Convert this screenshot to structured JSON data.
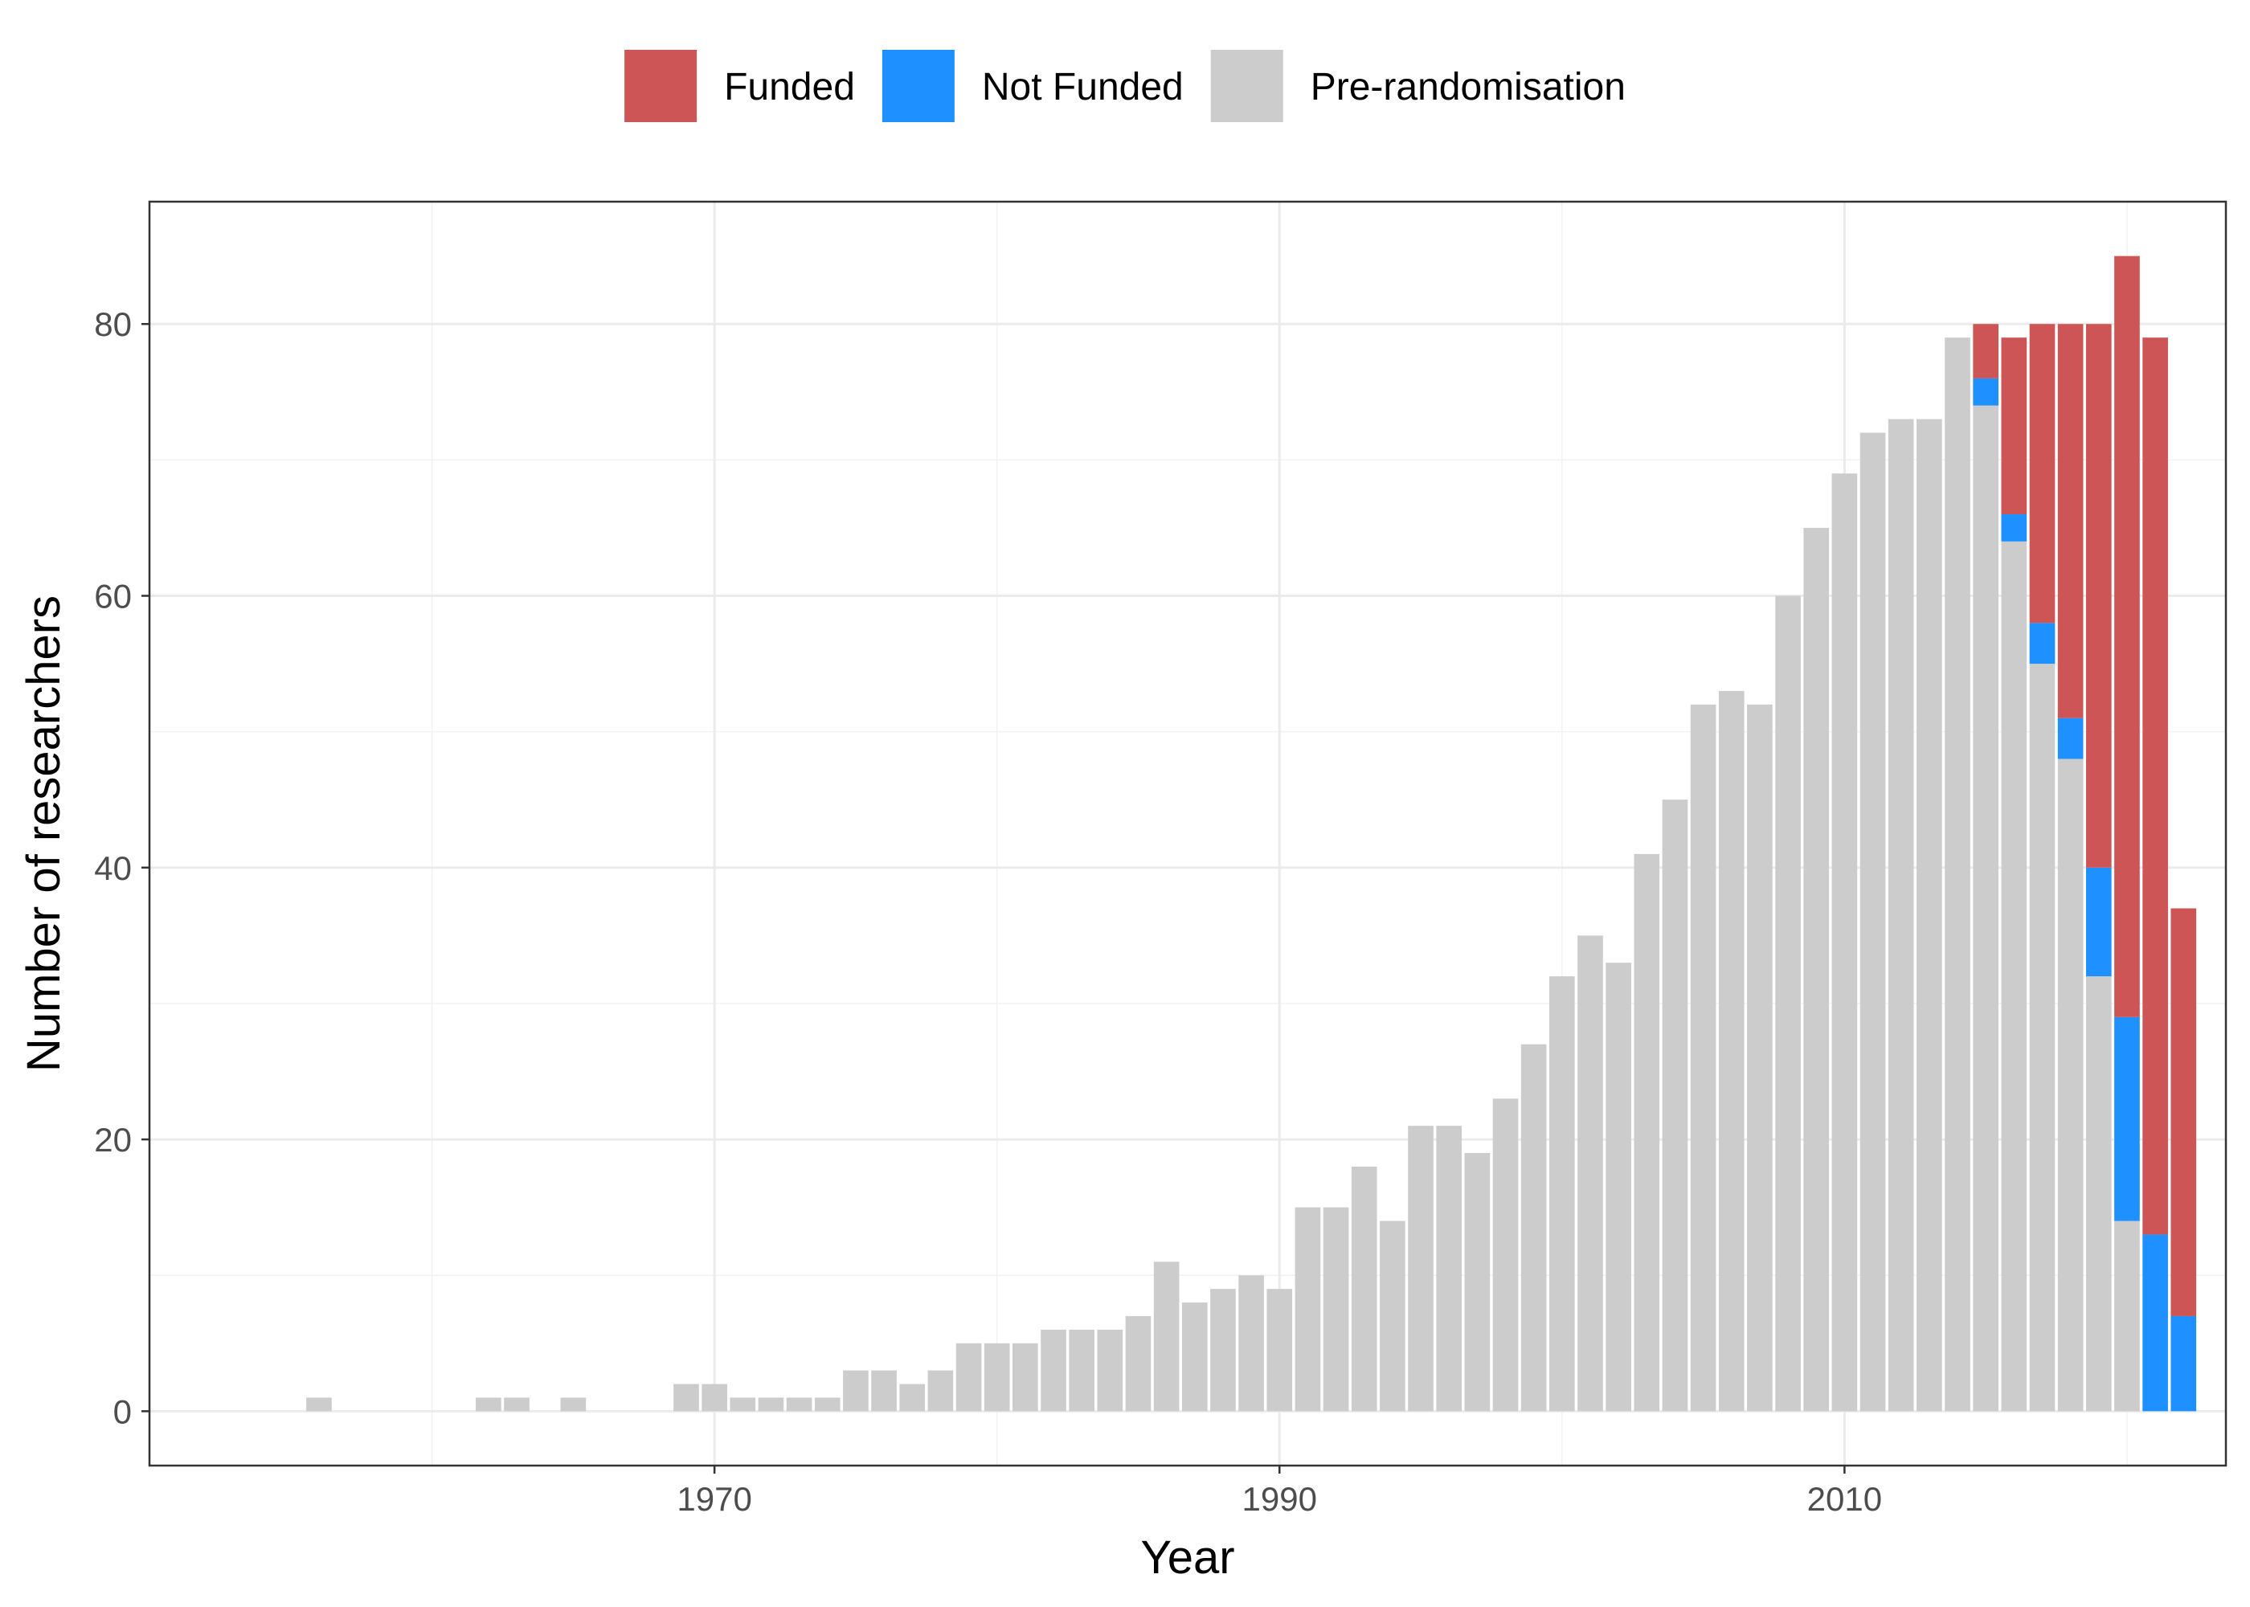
{
  "chart_data": {
    "type": "bar",
    "stacked": true,
    "title": "",
    "xlabel": "Year",
    "ylabel": "Number of researchers",
    "xlim": [
      1950,
      2023.5
    ],
    "ylim": [
      -4,
      89
    ],
    "x_ticks": [
      1970,
      1990,
      2010
    ],
    "x_ticks_minor": [
      1960,
      1980,
      2000,
      2020
    ],
    "y_ticks": [
      0,
      20,
      40,
      60,
      80
    ],
    "y_ticks_minor": [
      10,
      30,
      50,
      70
    ],
    "grid": true,
    "legend_position": "top",
    "colors": {
      "Pre-randomisation": "#cccccc",
      "Not Funded": "#1e90ff",
      "Funded": "#cd5555"
    },
    "stack_order": [
      "Pre-randomisation",
      "Not Funded",
      "Funded"
    ],
    "legend": [
      {
        "name": "Funded",
        "color": "#cd5555"
      },
      {
        "name": "Not Funded",
        "color": "#1e90ff"
      },
      {
        "name": "Pre-randomisation",
        "color": "#cccccc"
      }
    ],
    "x": [
      1956,
      1962,
      1963,
      1965,
      1969,
      1970,
      1971,
      1972,
      1973,
      1974,
      1975,
      1976,
      1977,
      1978,
      1979,
      1980,
      1981,
      1982,
      1983,
      1984,
      1985,
      1986,
      1987,
      1988,
      1989,
      1990,
      1991,
      1992,
      1993,
      1994,
      1995,
      1996,
      1997,
      1998,
      1999,
      2000,
      2001,
      2002,
      2003,
      2004,
      2005,
      2006,
      2007,
      2008,
      2009,
      2010,
      2011,
      2012,
      2013,
      2014,
      2015,
      2016,
      2017,
      2018,
      2019,
      2020,
      2021,
      2022
    ],
    "series": [
      {
        "name": "Pre-randomisation",
        "values": [
          1,
          1,
          1,
          1,
          2,
          2,
          1,
          1,
          1,
          1,
          3,
          3,
          2,
          3,
          5,
          5,
          5,
          6,
          6,
          6,
          7,
          11,
          8,
          9,
          10,
          9,
          15,
          15,
          18,
          14,
          21,
          21,
          19,
          23,
          27,
          32,
          35,
          33,
          41,
          45,
          52,
          53,
          52,
          60,
          65,
          69,
          72,
          73,
          73,
          79,
          74,
          64,
          55,
          48,
          32,
          14,
          0,
          0
        ]
      },
      {
        "name": "Not Funded",
        "values": [
          0,
          0,
          0,
          0,
          0,
          0,
          0,
          0,
          0,
          0,
          0,
          0,
          0,
          0,
          0,
          0,
          0,
          0,
          0,
          0,
          0,
          0,
          0,
          0,
          0,
          0,
          0,
          0,
          0,
          0,
          0,
          0,
          0,
          0,
          0,
          0,
          0,
          0,
          0,
          0,
          0,
          0,
          0,
          0,
          0,
          0,
          0,
          0,
          0,
          0,
          2,
          2,
          3,
          3,
          8,
          15,
          13,
          7
        ]
      },
      {
        "name": "Funded",
        "values": [
          0,
          0,
          0,
          0,
          0,
          0,
          0,
          0,
          0,
          0,
          0,
          0,
          0,
          0,
          0,
          0,
          0,
          0,
          0,
          0,
          0,
          0,
          0,
          0,
          0,
          0,
          0,
          0,
          0,
          0,
          0,
          0,
          0,
          0,
          0,
          0,
          0,
          0,
          0,
          0,
          0,
          0,
          0,
          0,
          0,
          0,
          0,
          0,
          0,
          0,
          4,
          13,
          22,
          29,
          40,
          56,
          66,
          30
        ]
      }
    ]
  }
}
